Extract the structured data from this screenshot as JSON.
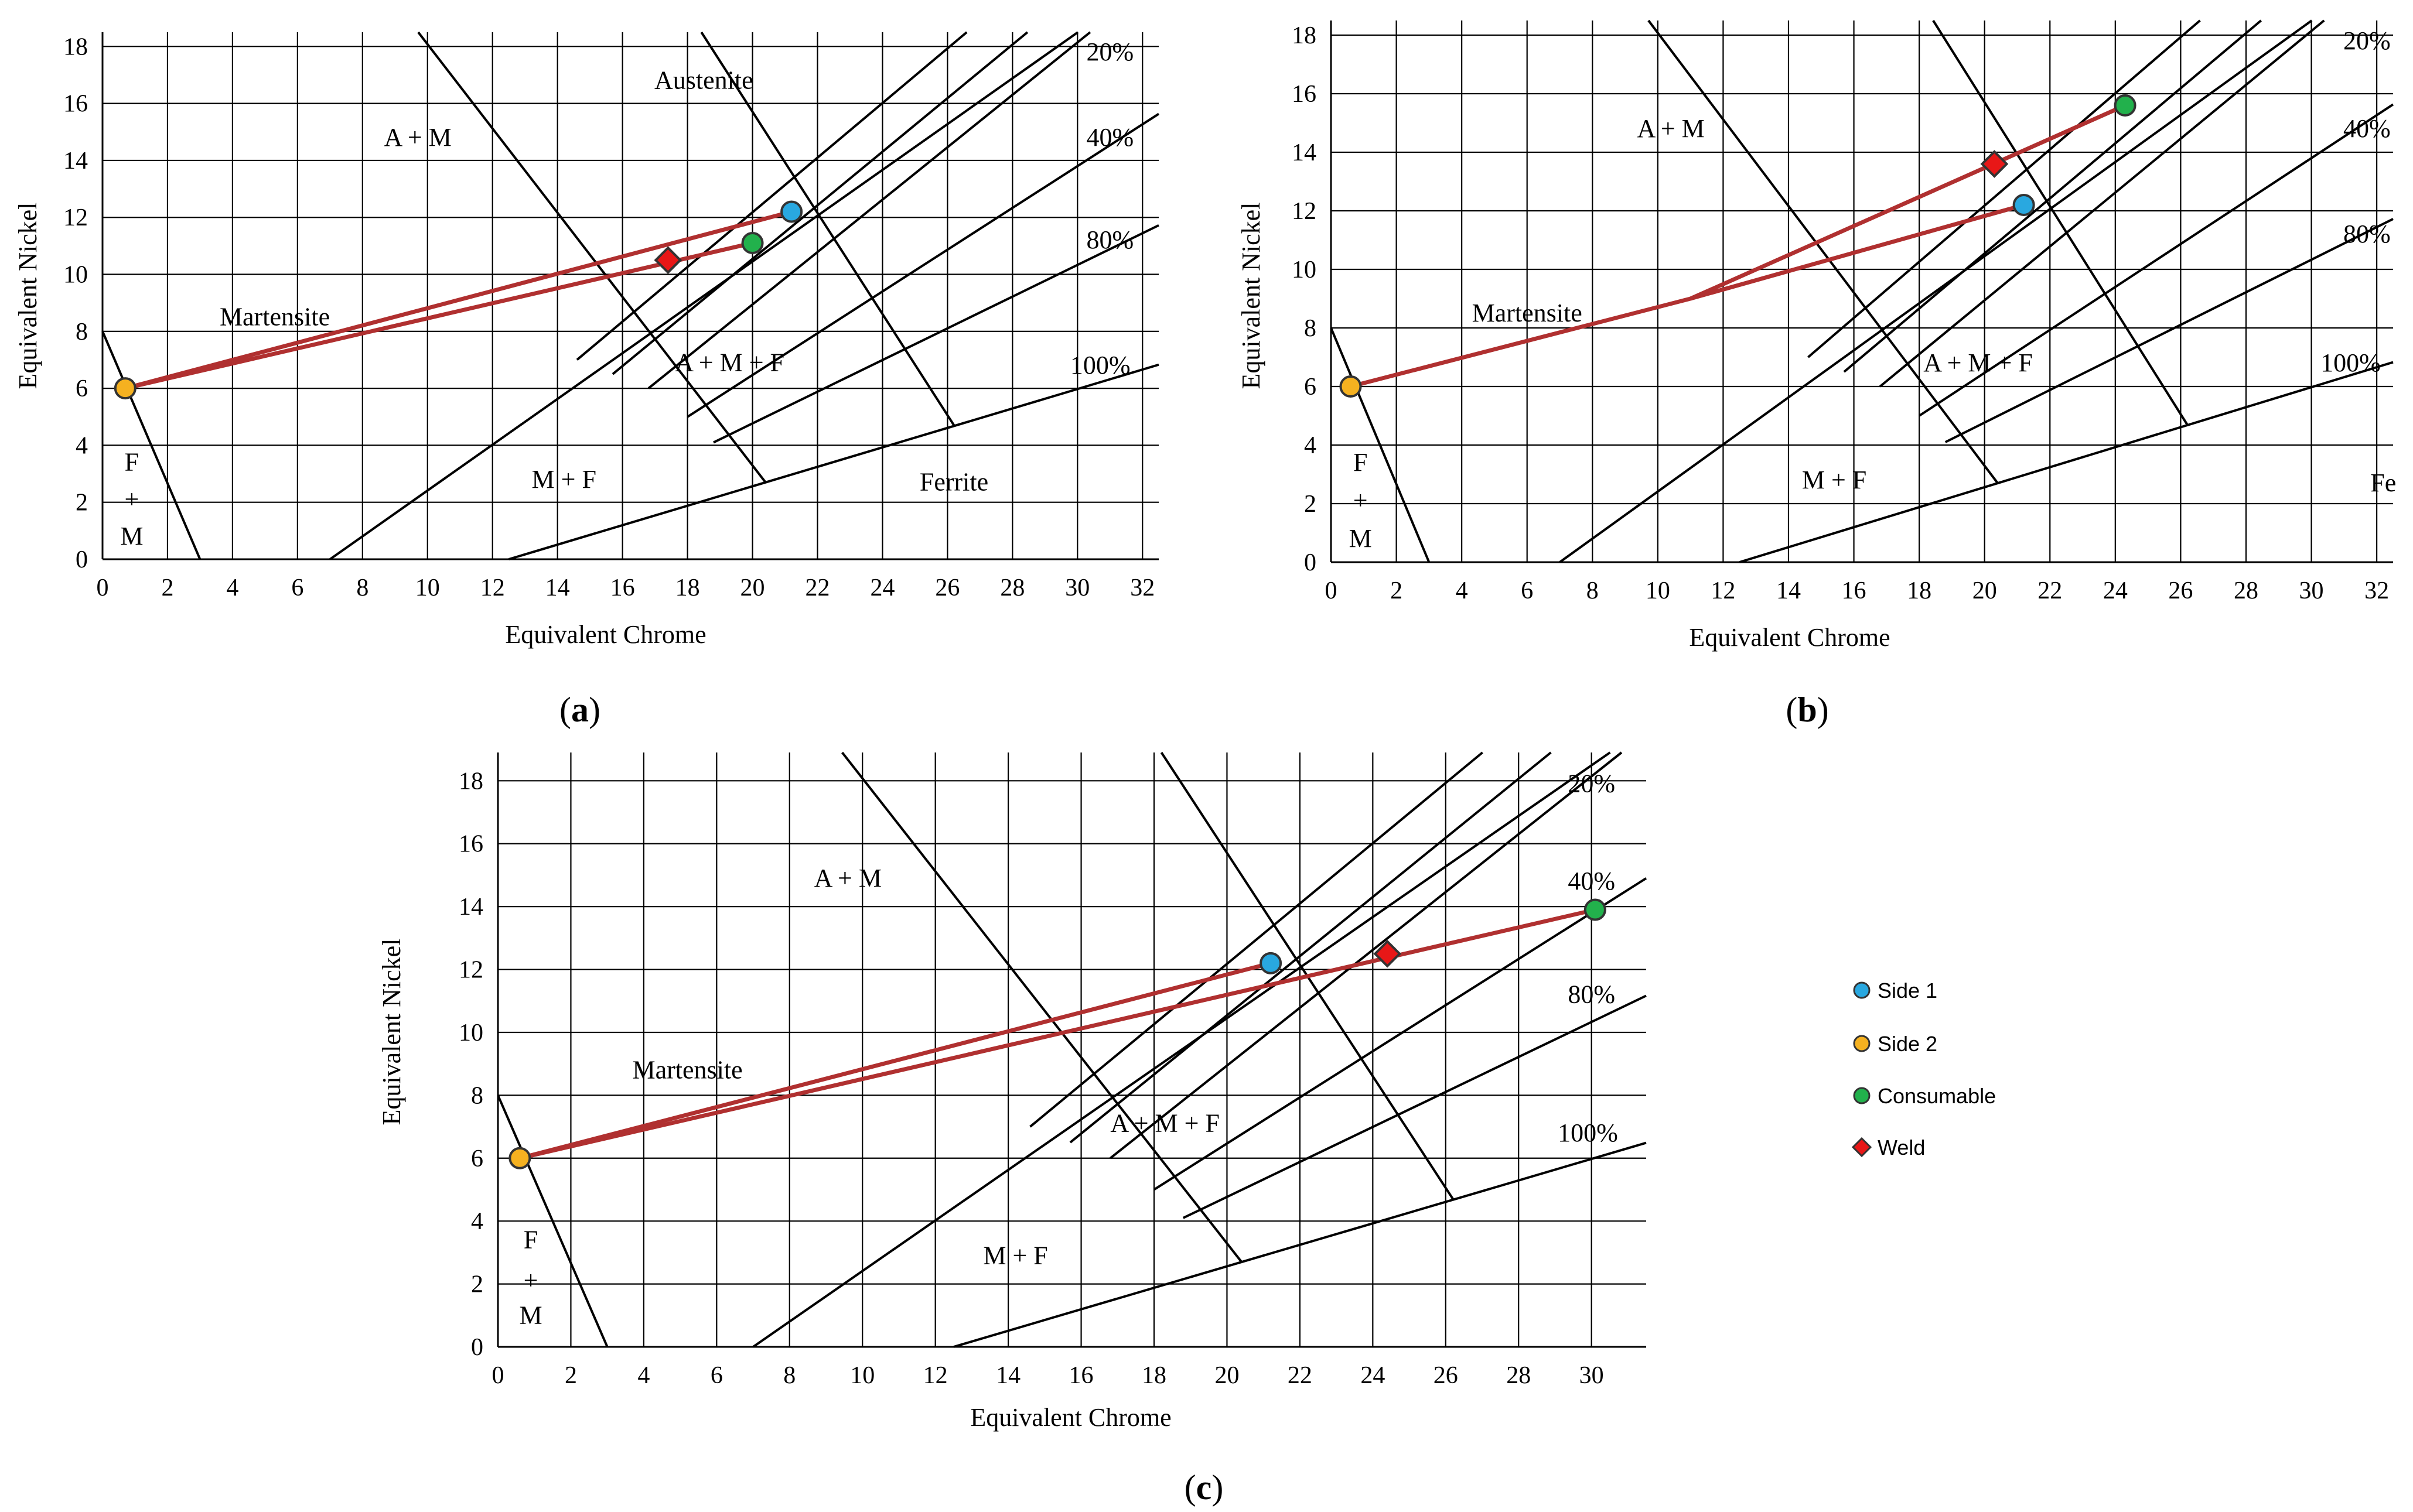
{
  "legend": {
    "items": [
      {
        "label": "Side 1",
        "marker": "circle",
        "color": "#29A8E0"
      },
      {
        "label": "Side 2",
        "marker": "circle",
        "color": "#F5B120"
      },
      {
        "label": "Consumable",
        "marker": "circle",
        "color": "#22B14C"
      },
      {
        "label": "Weld",
        "marker": "diamond",
        "color": "#E81717"
      }
    ]
  },
  "colors": {
    "grid": "#000000",
    "boundary": "#000000",
    "dilution_line": "#B03030",
    "marker_stroke": "#333333"
  },
  "chart_data": [
    {
      "type": "scatter",
      "panel_label": "a",
      "xlabel": "Equivalent Chrome",
      "ylabel": "Equivalent Nickel",
      "xlim": [
        0,
        32.5
      ],
      "ylim": [
        0,
        18.5
      ],
      "xticks": [
        0,
        2,
        4,
        6,
        8,
        10,
        12,
        14,
        16,
        18,
        20,
        22,
        24,
        26,
        28,
        30,
        32
      ],
      "yticks": [
        0,
        2,
        4,
        6,
        8,
        10,
        12,
        14,
        16,
        18
      ],
      "grid": true,
      "region_labels": [
        {
          "text": "Austenite",
          "x": 18.5,
          "y": 16.8
        },
        {
          "text": "A + M",
          "x": 9.7,
          "y": 14.8
        },
        {
          "text": "Martensite",
          "x": 5.3,
          "y": 8.5
        },
        {
          "text": "A + M + F",
          "x": 19.3,
          "y": 6.9
        },
        {
          "text": "M + F",
          "x": 14.2,
          "y": 2.8
        },
        {
          "text": "Ferrite",
          "x": 26.2,
          "y": 2.7
        },
        {
          "text": "F",
          "x": 0.9,
          "y": 3.4
        },
        {
          "text": "+",
          "x": 0.9,
          "y": 2.1
        },
        {
          "text": "M",
          "x": 0.9,
          "y": 0.8
        }
      ],
      "ferrite_labels": [
        {
          "text": "20%",
          "x": 31.0,
          "y": 17.8
        },
        {
          "text": "40%",
          "x": 31.0,
          "y": 14.8
        },
        {
          "text": "80%",
          "x": 31.0,
          "y": 11.2
        },
        {
          "text": "100%",
          "x": 30.7,
          "y": 6.8
        }
      ],
      "points": [
        {
          "series": "Side 1",
          "x": 21.2,
          "y": 12.2
        },
        {
          "series": "Side 2",
          "x": 0.7,
          "y": 6.0
        },
        {
          "series": "Consumable",
          "x": 20.0,
          "y": 11.1
        },
        {
          "series": "Weld",
          "x": 17.4,
          "y": 10.5
        }
      ],
      "tie_lines": [
        {
          "x": [
            0.7,
            21.2
          ],
          "y": [
            6.0,
            12.2
          ]
        },
        {
          "x": [
            0.7,
            20.0
          ],
          "y": [
            6.0,
            11.1
          ]
        }
      ]
    },
    {
      "type": "scatter",
      "panel_label": "b",
      "xlabel": "Equivalent Chrome",
      "ylabel": "Equivalent Nickel",
      "xlim": [
        0,
        32.5
      ],
      "ylim": [
        0,
        18.5
      ],
      "xticks": [
        0,
        2,
        4,
        6,
        8,
        10,
        12,
        14,
        16,
        18,
        20,
        22,
        24,
        26,
        28,
        30,
        32
      ],
      "yticks": [
        0,
        2,
        4,
        6,
        8,
        10,
        12,
        14,
        16,
        18
      ],
      "xticklabels": [
        "0",
        "2",
        "4",
        "6",
        "8",
        "10",
        "12",
        "14",
        "16",
        "18",
        "20",
        "22",
        "24",
        "26",
        "28",
        "30",
        "32"
      ],
      "grid": true,
      "region_labels": [
        {
          "text": "A + M",
          "x": 10.4,
          "y": 14.8
        },
        {
          "text": "Martensite",
          "x": 6.0,
          "y": 8.5
        },
        {
          "text": "A + M + F",
          "x": 19.8,
          "y": 6.8
        },
        {
          "text": "M + F",
          "x": 15.4,
          "y": 2.8
        },
        {
          "text": "Fe",
          "x": 32.2,
          "y": 2.7
        },
        {
          "text": "F",
          "x": 0.9,
          "y": 3.4
        },
        {
          "text": "+",
          "x": 0.9,
          "y": 2.1
        },
        {
          "text": "M",
          "x": 0.9,
          "y": 0.8
        }
      ],
      "ferrite_labels": [
        {
          "text": "20%",
          "x": 31.7,
          "y": 17.8
        },
        {
          "text": "40%",
          "x": 31.7,
          "y": 14.8
        },
        {
          "text": "80%",
          "x": 31.7,
          "y": 11.2
        },
        {
          "text": "100%",
          "x": 31.2,
          "y": 6.8
        }
      ],
      "points": [
        {
          "series": "Side 1",
          "x": 21.2,
          "y": 12.2
        },
        {
          "series": "Side 2",
          "x": 0.6,
          "y": 6.0
        },
        {
          "series": "Consumable",
          "x": 24.3,
          "y": 15.6
        },
        {
          "series": "Weld",
          "x": 20.3,
          "y": 13.6
        }
      ],
      "tie_lines": [
        {
          "x": [
            0.6,
            11.0,
            21.2
          ],
          "y": [
            6.0,
            9.0,
            12.2
          ]
        },
        {
          "x": [
            11.0,
            24.3
          ],
          "y": [
            9.0,
            15.6
          ]
        }
      ]
    },
    {
      "type": "scatter",
      "panel_label": "c",
      "xlabel": "Equivalent Chrome",
      "ylabel": "Equivalent Nickel",
      "xlim": [
        0,
        31.5
      ],
      "ylim": [
        0,
        18.9
      ],
      "xticks": [
        0,
        2,
        4,
        6,
        8,
        10,
        12,
        14,
        16,
        18,
        20,
        22,
        24,
        26,
        28,
        30
      ],
      "yticks": [
        0,
        2,
        4,
        6,
        8,
        10,
        12,
        14,
        16,
        18
      ],
      "grid": true,
      "region_labels": [
        {
          "text": "A + M",
          "x": 9.6,
          "y": 14.9
        },
        {
          "text": "Martensite",
          "x": 5.2,
          "y": 8.8
        },
        {
          "text": "A + M + F",
          "x": 18.3,
          "y": 7.1
        },
        {
          "text": "M + F",
          "x": 14.2,
          "y": 2.9
        },
        {
          "text": "F",
          "x": 0.9,
          "y": 3.4
        },
        {
          "text": "+",
          "x": 0.9,
          "y": 2.1
        },
        {
          "text": "M",
          "x": 0.9,
          "y": 1.0
        }
      ],
      "ferrite_labels": [
        {
          "text": "20%",
          "x": 30.0,
          "y": 17.9
        },
        {
          "text": "40%",
          "x": 30.0,
          "y": 14.8
        },
        {
          "text": "80%",
          "x": 30.0,
          "y": 11.2
        },
        {
          "text": "100%",
          "x": 29.9,
          "y": 6.8
        }
      ],
      "points": [
        {
          "series": "Side 1",
          "x": 21.2,
          "y": 12.2
        },
        {
          "series": "Side 2",
          "x": 0.6,
          "y": 6.0
        },
        {
          "series": "Consumable",
          "x": 30.1,
          "y": 13.9
        },
        {
          "series": "Weld",
          "x": 24.4,
          "y": 12.5
        }
      ],
      "tie_lines": [
        {
          "x": [
            0.6,
            21.2
          ],
          "y": [
            6.0,
            12.2
          ]
        },
        {
          "x": [
            0.6,
            30.1
          ],
          "y": [
            6.0,
            13.9
          ]
        }
      ]
    }
  ]
}
